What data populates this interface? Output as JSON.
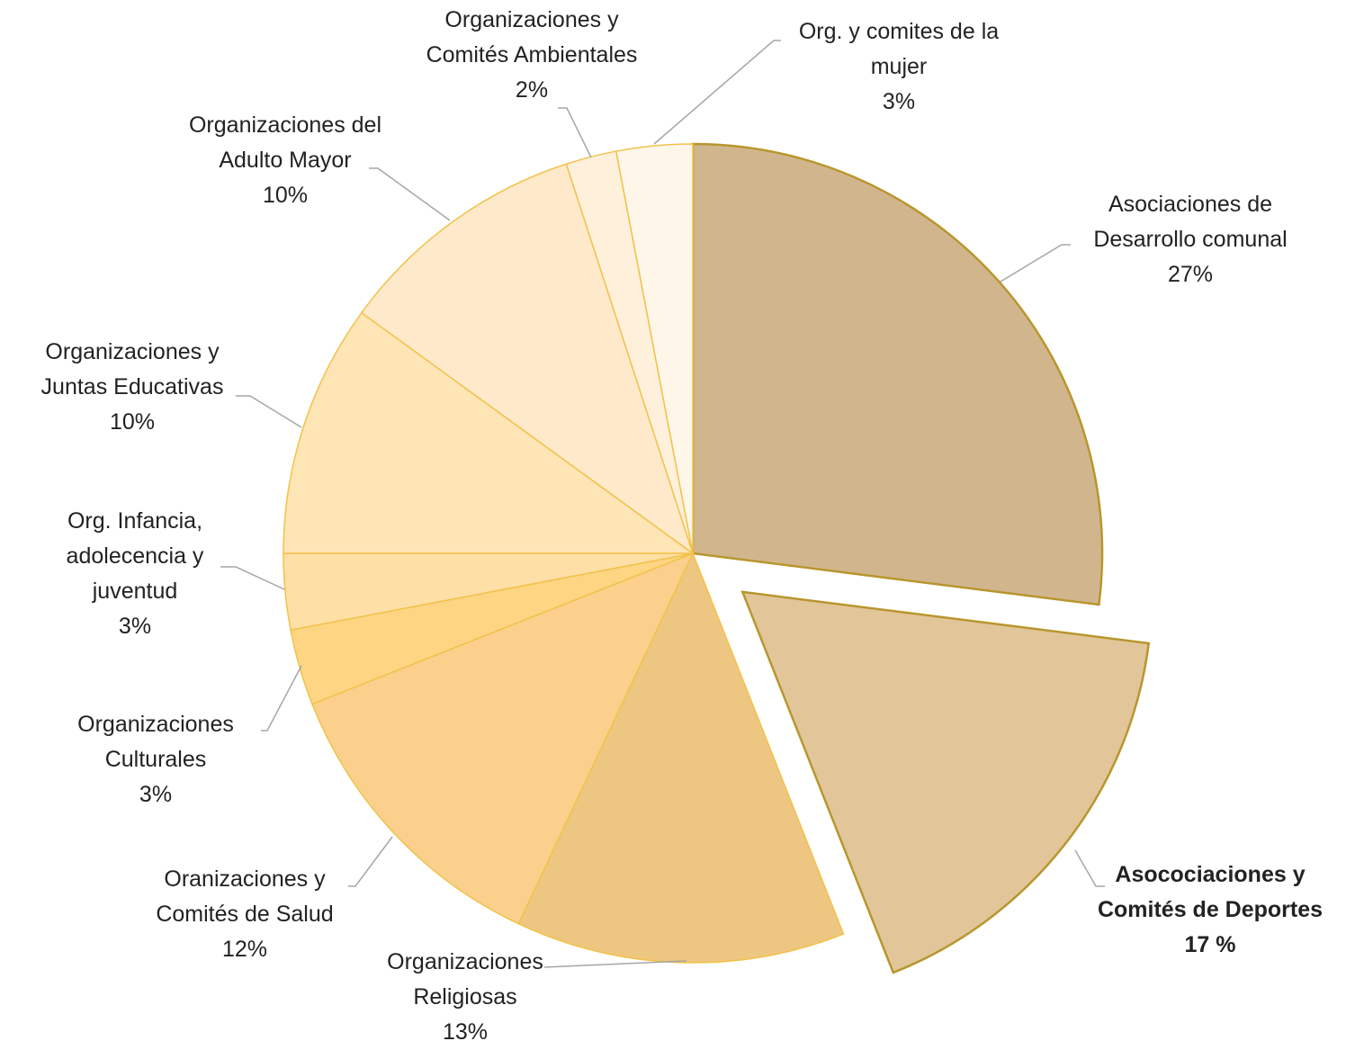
{
  "chart_data": {
    "type": "pie",
    "categories": [
      "Asociaciones de Desarrollo comunal",
      "Asocociaciones y Comités de Deportes",
      "Organizaciones Religiosas",
      "Oranizaciones y Comités de Salud",
      "Organizaciones Culturales",
      "Org. Infancia, adolecencia y juventud",
      "Organizaciones y Juntas Educativas",
      "Organizaciones del Adulto Mayor",
      "Organizaciones y Comités Ambientales",
      "Org. y comites de la mujer"
    ],
    "values": [
      27,
      17,
      13,
      12,
      3,
      3,
      10,
      10,
      2,
      3
    ],
    "value_labels": [
      "27%",
      "17 %",
      "13%",
      "12%",
      "3%",
      "3%",
      "10%",
      "10%",
      "2%",
      "3%"
    ],
    "colors": [
      "#d1b68d",
      "#e2c699",
      "#edc681",
      "#fbd08c",
      "#fdd583",
      "#fedfa6",
      "#fee5b6",
      "#feeacb",
      "#fff0dc",
      "#fff6ea"
    ]
  }
}
